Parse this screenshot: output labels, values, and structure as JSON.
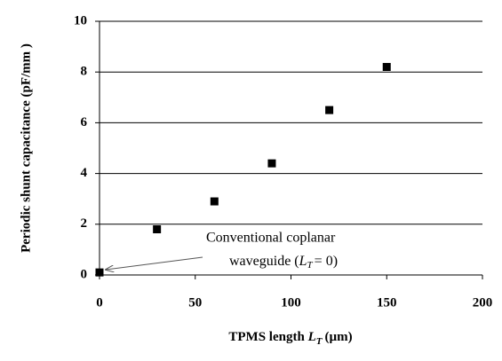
{
  "chart_data": {
    "type": "scatter",
    "y_label": "Periodic shunt capacitance (pF/mm )",
    "x_label": {
      "text": "TPMS length ",
      "var": "L",
      "sub": "T",
      "unit": "(µm)"
    },
    "annotation": {
      "line1": "Conventional coplanar",
      "line2_pre": "waveguide (",
      "var": "L",
      "sub": "T",
      "line2_post": "= 0)"
    },
    "x": [
      0,
      30,
      60,
      90,
      120,
      150
    ],
    "values": [
      0.1,
      1.8,
      2.9,
      4.4,
      6.5,
      8.2
    ],
    "color": "#000000",
    "xlim": [
      0,
      200
    ],
    "xticks": [
      0,
      50,
      100,
      150,
      200
    ],
    "ylim": [
      0,
      10
    ],
    "yticks": [
      0,
      2,
      4,
      6,
      8,
      10
    ],
    "grid": true
  }
}
